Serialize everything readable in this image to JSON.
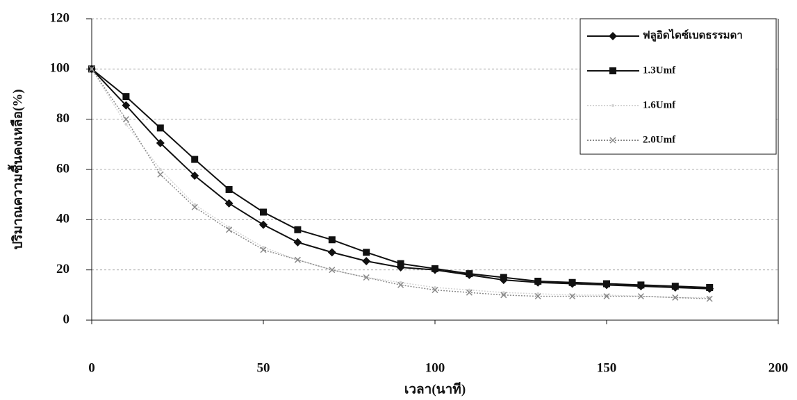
{
  "chart_data": {
    "type": "line",
    "y_label": "ปริมาณความชื้นคงเหลือ(%)",
    "x_label": "เวลา(นาที)",
    "x": [
      0,
      10,
      20,
      30,
      40,
      50,
      60,
      70,
      80,
      90,
      100,
      110,
      120,
      130,
      140,
      150,
      160,
      170,
      180
    ],
    "series": [
      {
        "name": "ฟลูอิดไดซ์เบดธรรมดา",
        "color": "#111111",
        "marker": "diamond",
        "values": [
          100,
          85.5,
          70.5,
          57.5,
          46.5,
          38,
          31,
          27,
          23.5,
          21,
          20,
          18,
          16,
          15,
          14.5,
          14,
          13.5,
          13,
          12.5
        ]
      },
      {
        "name": "1.3Umf",
        "color": "#111111",
        "marker": "square",
        "values": [
          100,
          89,
          76.5,
          64,
          52,
          43,
          36,
          32,
          27,
          22.5,
          20.5,
          18.5,
          17,
          15.5,
          15,
          14.5,
          14,
          13.5,
          13
        ]
      },
      {
        "name": "1.6Umf",
        "color": "#d4d4d4",
        "marker": "none",
        "values": [
          100,
          78,
          60,
          46,
          37,
          29,
          24,
          20,
          17,
          15,
          13,
          12,
          11,
          10.5,
          10,
          10,
          9.5,
          9,
          9
        ]
      },
      {
        "name": "2.0Umf",
        "color": "#8a8a8a",
        "marker": "x",
        "values": [
          100,
          80,
          58,
          45,
          36,
          28,
          24,
          20,
          17,
          14,
          12,
          11,
          10,
          9.5,
          9.5,
          9.5,
          9.5,
          9,
          8.5
        ]
      }
    ],
    "xlim": [
      0,
      200
    ],
    "xticks": [
      0,
      50,
      100,
      150,
      200
    ],
    "ylim": [
      0,
      120
    ],
    "yticks": [
      0,
      20,
      40,
      60,
      80,
      100,
      120
    ],
    "grid": true
  }
}
